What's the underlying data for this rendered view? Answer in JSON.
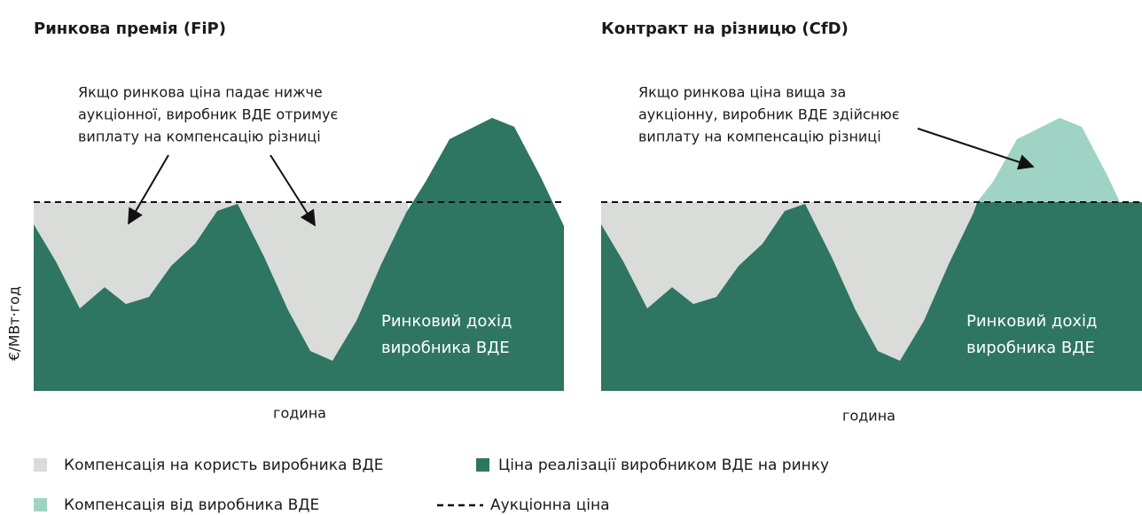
{
  "panels": [
    {
      "title": "Ринкова премія (FiP)",
      "annotation": [
        "Якщо ринкова ціна падає нижче",
        "аукціонної, виробник ВДЕ отримує",
        "виплату на компенсацію різниці"
      ],
      "area_label": [
        "Ринковий дохід",
        "виробника ВДЕ"
      ],
      "x_label": "година"
    },
    {
      "title": "Контракт на різницю (CfD)",
      "annotation": [
        "Якщо ринкова ціна вища за",
        "аукціонну, виробник ВДЕ здійснює",
        "виплату на компенсацію різниці"
      ],
      "area_label": [
        "Ринковий дохід",
        "виробника ВДЕ"
      ],
      "x_label": "година"
    }
  ],
  "y_label": "€/МВт·год",
  "legend": [
    "Компенсація на користь виробника ВДЕ",
    "Ціна реалізації виробником ВДЕ на ринку",
    "Компенсація від виробника ВДЕ",
    "Аукціонна ціна"
  ]
}
